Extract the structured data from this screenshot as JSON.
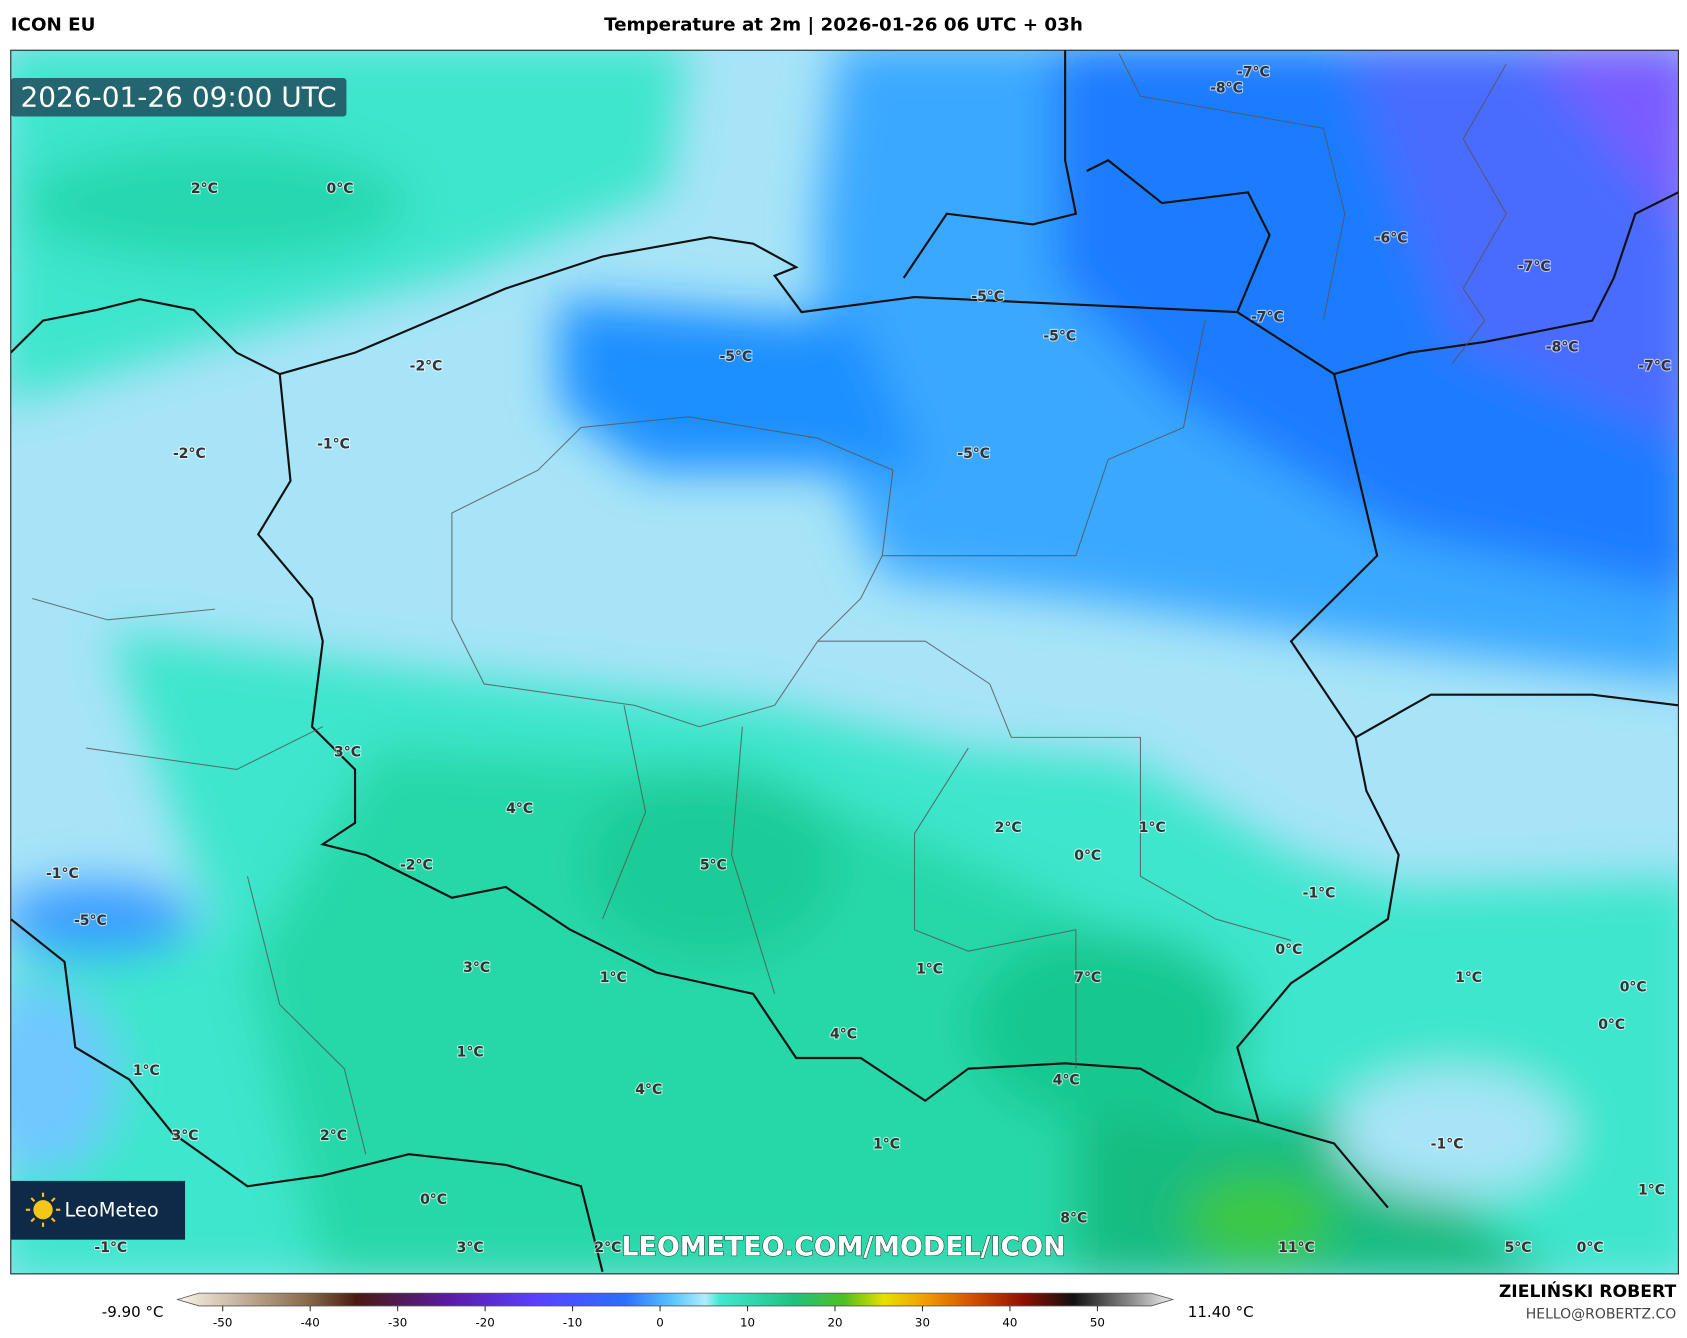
{
  "header": {
    "model": "ICON EU",
    "title": "Temperature at 2m | 2026-01-26 06 UTC + 03h"
  },
  "map": {
    "timestamp": "2026-01-26 09:00 UTC",
    "watermark": "LEOMETEO.COM/MODEL/ICON",
    "logo": "LeoMeteo",
    "labels": [
      "2°C",
      "0°C",
      "-2°C",
      "-1°C",
      "-2°C",
      "-5°C",
      "-5°C",
      "-5°C",
      "-5°C",
      "-7°C",
      "-8°C",
      "-6°C",
      "-7°C",
      "-7°C",
      "-8°C",
      "-7°C",
      "3°C",
      "4°C",
      "5°C",
      "2°C",
      "1°C",
      "0°C",
      "-1°C",
      "-2°C",
      "-1°C",
      "-5°C",
      "0°C",
      "1°C",
      "0°C",
      "0°C",
      "3°C",
      "1°C",
      "1°C",
      "7°C",
      "4°C",
      "4°C",
      "1°C",
      "1°C",
      "4°C",
      "3°C",
      "2°C",
      "1°C",
      "-1°C",
      "1°C",
      "0°C",
      "8°C",
      "-1°C",
      "3°C",
      "2°C",
      "11°C",
      "5°C",
      "0°C"
    ]
  },
  "colorbar": {
    "min_label": "-9.90 °C",
    "max_label": "11.40 °C",
    "ticks": [
      -50,
      -40,
      -30,
      -20,
      -10,
      0,
      10,
      20,
      30,
      40,
      50
    ]
  },
  "credits": {
    "name": "ZIELIŃSKI ROBERT",
    "email": "HELLO@ROBERTZ.CO"
  }
}
